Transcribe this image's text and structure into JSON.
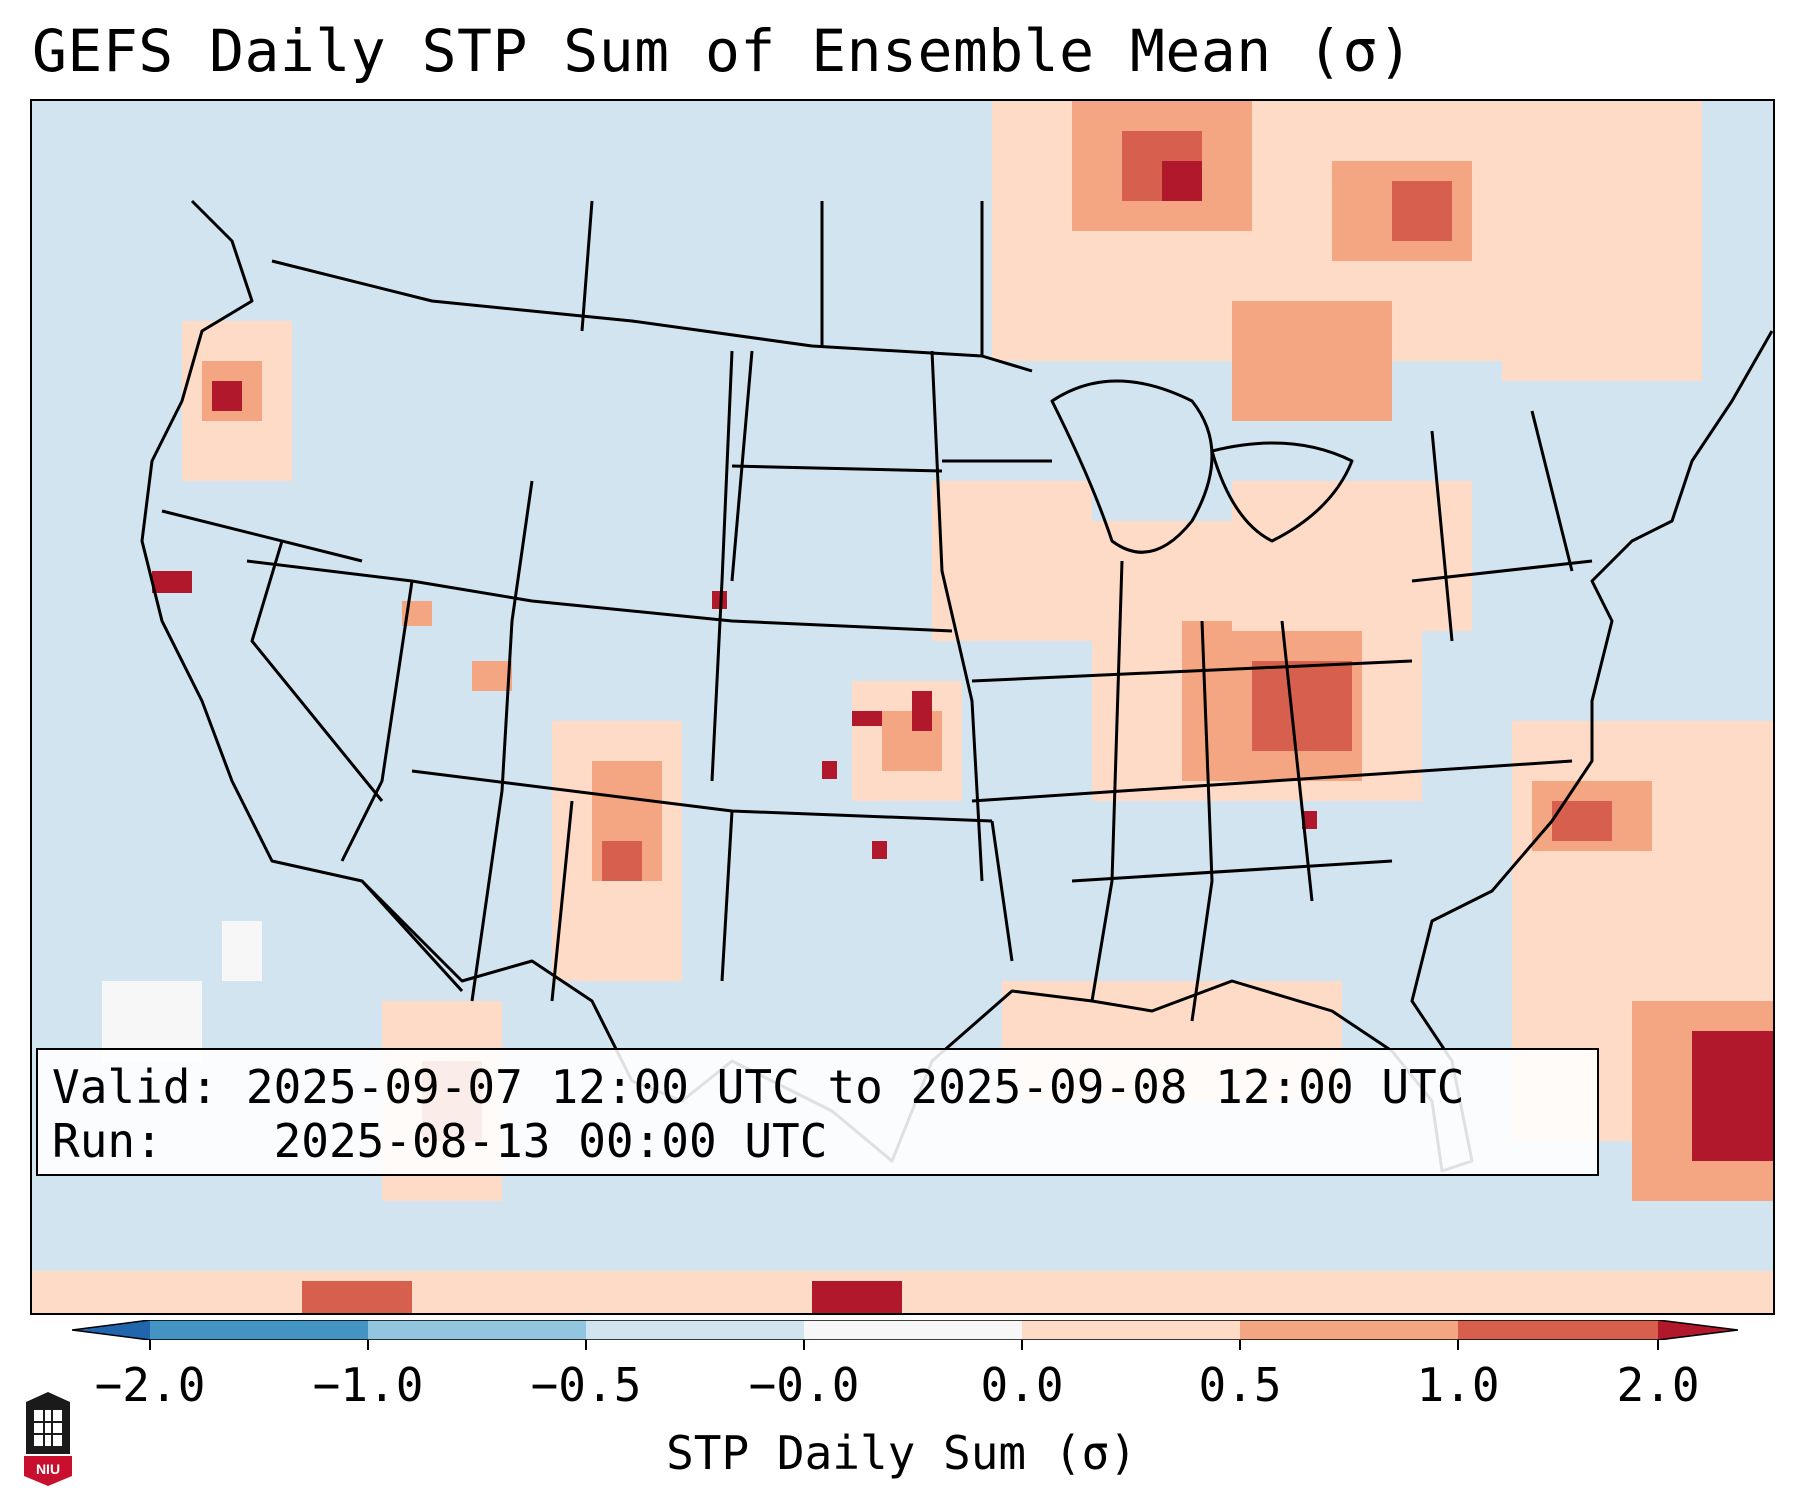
{
  "title": "GEFS Daily STP Sum of Ensemble Mean (σ)",
  "info": {
    "valid_label": "Valid:",
    "valid_value": "2025-09-07 12:00 UTC to 2025-09-08 12:00 UTC",
    "run_label": "Run:",
    "run_value": "2025-08-13 00:00 UTC"
  },
  "colorbar": {
    "label": "STP Daily Sum (σ)",
    "ticks": [
      "−2.0",
      "−1.0",
      "−0.5",
      "−0.0",
      "0.0",
      "0.5",
      "1.0",
      "2.0"
    ],
    "colors": {
      "below_min": "#2166ac",
      "bin_-2_-1": "#4393c3",
      "bin_-1_-05": "#92c5de",
      "bin_-05_0": "#d1e5f0",
      "bin_0": "#f7f7f7",
      "bin_0_05": "#fddbc7",
      "bin_05_1": "#f4a582",
      "bin_1_2": "#d6604d",
      "above_max": "#b2182b"
    }
  },
  "logo": {
    "text": "NIU",
    "color": "#c8102e"
  }
}
